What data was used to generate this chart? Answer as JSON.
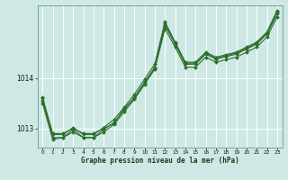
{
  "background_color": "#cee9e5",
  "grid_color": "#ffffff",
  "line_color": "#2d6e2d",
  "marker_color": "#2d6e2d",
  "xlabel": "Graphe pression niveau de la mer (hPa)",
  "ylim": [
    1012.62,
    1015.45
  ],
  "xlim": [
    -0.5,
    23.5
  ],
  "yticks": [
    1013,
    1014
  ],
  "xticks": [
    0,
    1,
    2,
    3,
    4,
    5,
    6,
    7,
    8,
    9,
    10,
    11,
    12,
    13,
    14,
    15,
    16,
    17,
    18,
    19,
    20,
    21,
    22,
    23
  ],
  "series": [
    [
      1013.55,
      1012.82,
      1012.82,
      1012.98,
      1012.82,
      1012.82,
      1012.98,
      1013.12,
      1013.37,
      1013.62,
      1013.92,
      1014.22,
      1015.05,
      1014.68,
      1014.28,
      1014.28,
      1014.48,
      1014.38,
      1014.43,
      1014.48,
      1014.58,
      1014.68,
      1014.88,
      1015.28
    ],
    [
      1013.5,
      1012.78,
      1012.82,
      1012.93,
      1012.82,
      1012.82,
      1012.93,
      1013.08,
      1013.33,
      1013.58,
      1013.88,
      1014.18,
      1014.98,
      1014.62,
      1014.22,
      1014.22,
      1014.42,
      1014.32,
      1014.37,
      1014.42,
      1014.52,
      1014.62,
      1014.82,
      1015.22
    ],
    [
      1013.62,
      1012.88,
      1012.88,
      1013.02,
      1012.88,
      1012.88,
      1013.02,
      1013.18,
      1013.42,
      1013.68,
      1013.98,
      1014.28,
      1015.12,
      1014.72,
      1014.32,
      1014.32,
      1014.52,
      1014.42,
      1014.47,
      1014.52,
      1014.62,
      1014.72,
      1014.92,
      1015.35
    ],
    [
      1013.6,
      1012.9,
      1012.9,
      1013.0,
      1012.9,
      1012.9,
      1013.0,
      1013.1,
      1013.4,
      1013.6,
      1013.9,
      1014.2,
      1015.1,
      1014.7,
      1014.3,
      1014.3,
      1014.5,
      1014.4,
      1014.45,
      1014.5,
      1014.6,
      1014.7,
      1014.9,
      1015.32
    ]
  ]
}
